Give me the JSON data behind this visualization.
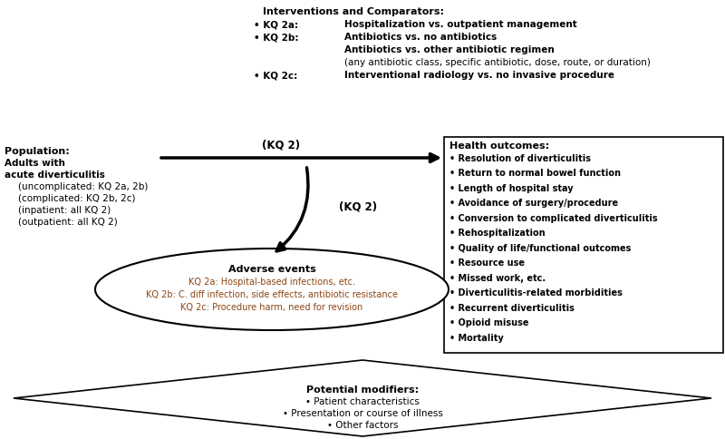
{
  "bg_color": "#ffffff",
  "text_color": "#000000",
  "adverse_kq_color": "#8B4513",
  "interventions_title": "Interventions and Comparators:",
  "interv_rows": [
    {
      "bullet": "• KQ 2a:",
      "text": "Hospitalization vs. outpatient management",
      "bold": true,
      "indent": false
    },
    {
      "bullet": "• KQ 2b:",
      "text": "Antibiotics vs. no antibiotics",
      "bold": true,
      "indent": false
    },
    {
      "bullet": "",
      "text": "Antibiotics vs. other antibiotic regimen",
      "bold": true,
      "indent": true
    },
    {
      "bullet": "",
      "text": "(any antibiotic class, specific antibiotic, dose, route, or duration)",
      "bold": false,
      "indent": true
    },
    {
      "bullet": "• KQ 2c:",
      "text": "Interventional radiology vs. no invasive procedure",
      "bold": true,
      "indent": false
    }
  ],
  "population_title": "Population:",
  "population_lines": [
    {
      "text": "Adults with",
      "bold": true,
      "indent": false
    },
    {
      "text": "acute diverticulitis",
      "bold": true,
      "indent": false
    },
    {
      "text": "(uncomplicated: KQ 2a, 2b)",
      "bold": false,
      "indent": true
    },
    {
      "text": "(complicated: KQ 2b, 2c)",
      "bold": false,
      "indent": true
    },
    {
      "text": "(inpatient: all KQ 2)",
      "bold": false,
      "indent": true
    },
    {
      "text": "(outpatient: all KQ 2)",
      "bold": false,
      "indent": true
    }
  ],
  "health_outcomes_title": "Health outcomes:",
  "health_outcomes": [
    "Resolution of diverticulitis",
    "Return to normal bowel function",
    "Length of hospital stay",
    "Avoidance of surgery/procedure",
    "Conversion to complicated diverticulitis",
    "Rehospitalization",
    "Quality of life/functional outcomes",
    "Resource use",
    "Missed work, etc.",
    "Diverticulitis-related morbidities",
    "Recurrent diverticulitis",
    "Opioid misuse",
    "Mortality"
  ],
  "adverse_title": "Adverse events",
  "adverse_lines": [
    "KQ 2a: Hospital-based infections, etc.",
    "KQ 2b: C. diff infection, side effects, antibiotic resistance",
    "KQ 2c: Procedure harm, need for revision"
  ],
  "modifiers_title": "Potential modifiers:",
  "modifiers_lines": [
    "• Patient characteristics",
    "• Presentation or course of illness",
    "• Other factors"
  ],
  "kq2_label": "(KQ 2)",
  "fig_width": 8.0,
  "fig_height": 4.85,
  "dpi": 100
}
